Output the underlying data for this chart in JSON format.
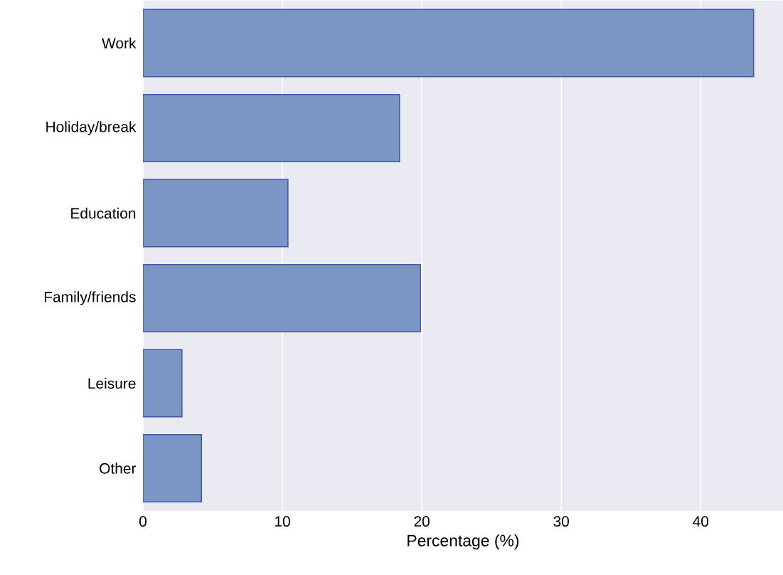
{
  "chart_data": {
    "type": "bar",
    "orientation": "horizontal",
    "xlabel": "Percentage (%)",
    "categories": [
      "Work",
      "Holiday/break",
      "Education",
      "Family/friends",
      "Leisure",
      "Other"
    ],
    "values": [
      43.8,
      18.4,
      10.4,
      19.9,
      2.8,
      4.2
    ],
    "color": "#7996c4",
    "xlim": [
      0,
      45.9
    ],
    "xticks": [
      0,
      10,
      20,
      30,
      40
    ],
    "grid": "x"
  }
}
